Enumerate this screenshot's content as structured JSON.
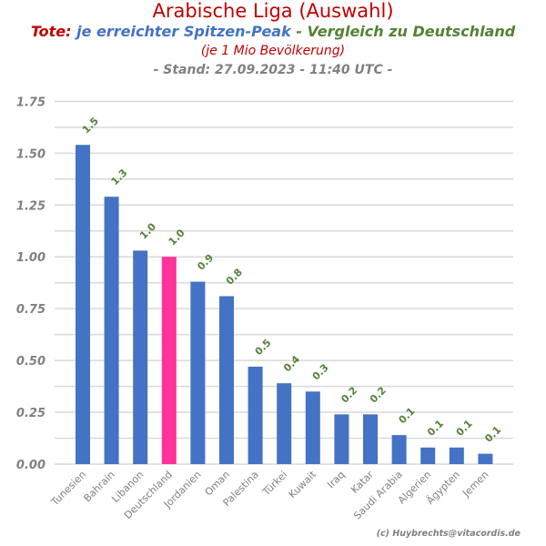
{
  "header": {
    "title": "Arabische Liga (Auswahl)",
    "subtitle_part1": "Tote:",
    "subtitle_part2": "je erreichter Spitzen-Peak",
    "subtitle_part3": "- Vergleich zu Deutschland",
    "note": "(je 1 Mio Bevölkerung)",
    "stand": "- Stand: 27.09.2023 - 11:40 UTC -"
  },
  "credit": "(c) Huybrechts@vitacordis.de",
  "colors": {
    "bar": "#4472c4",
    "highlight": "#ff3399",
    "label": "#548235",
    "axis_text": "#808080",
    "grid": "#d9d9d9"
  },
  "chart_data": {
    "type": "bar",
    "categories": [
      "Tunesien",
      "Bahrain",
      "Libanon",
      "Deutschland",
      "Jordanien",
      "Oman",
      "Palestina",
      "Türkei",
      "Kuwait",
      "Iraq",
      "Katar",
      "Saudi Arabia",
      "Algerien",
      "Ägypten",
      "Jemen"
    ],
    "values": [
      1.54,
      1.29,
      1.03,
      1.0,
      0.88,
      0.81,
      0.47,
      0.39,
      0.35,
      0.24,
      0.24,
      0.14,
      0.08,
      0.08,
      0.05
    ],
    "data_labels": [
      "1.5",
      "1.3",
      "1.0",
      "1.0",
      "0.9",
      "0.8",
      "0.5",
      "0.4",
      "0.3",
      "0.2",
      "0.2",
      "0.1",
      "0.1",
      "0.1",
      "0.1"
    ],
    "highlight_category": "Deutschland",
    "ylim": [
      0,
      1.8
    ],
    "yticks": [
      0,
      0.25,
      0.5,
      0.75,
      1.0,
      1.25,
      1.5,
      1.75
    ],
    "ytick_labels": [
      "0.00",
      "0.25",
      "0.50",
      "0.75",
      "1.00",
      "1.25",
      "1.50",
      "1.75"
    ],
    "grid": true
  }
}
